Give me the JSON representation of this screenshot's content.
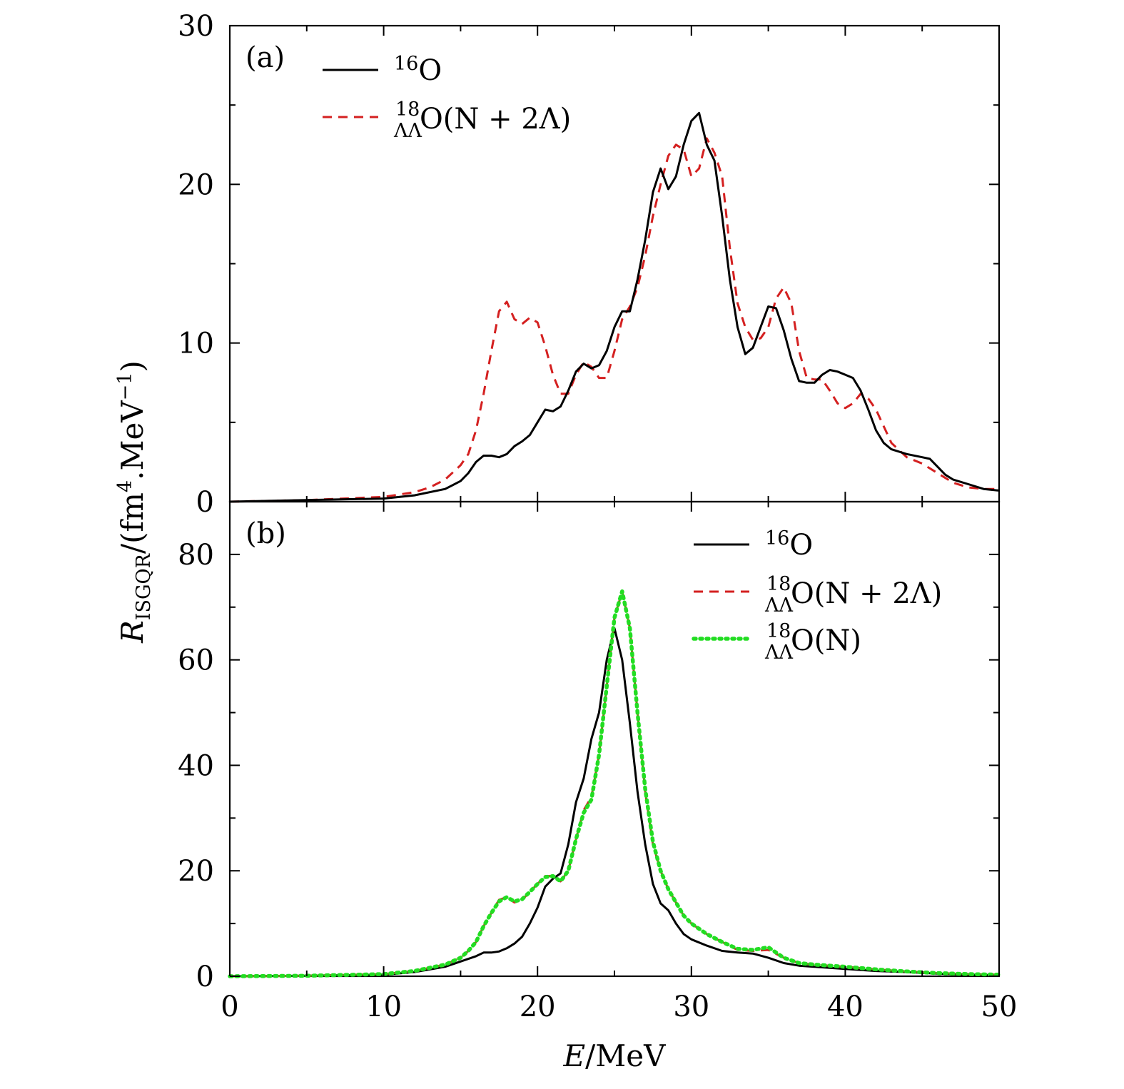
{
  "chart_data": {
    "type": "line",
    "xlabel": {
      "var": "E",
      "unit": "/MeV"
    },
    "ylabel": {
      "main": "R",
      "sub": "ISGQR",
      "unit": "/(fm",
      "sup": "4",
      "unit2": ".MeV",
      "sup2": "−1",
      "close": ")"
    },
    "xlim": [
      0,
      50
    ],
    "x_ticks": [
      "0",
      "10",
      "20",
      "30",
      "40",
      "50"
    ],
    "colors": {
      "o16": "#000000",
      "ll_n2l": "#d42020",
      "ll_n": "#22dd22"
    },
    "panels": [
      {
        "id": "a",
        "label": "(a)",
        "ylim": [
          0,
          30
        ],
        "y_ticks": [
          "0",
          "10",
          "20",
          "30"
        ],
        "legend": [
          {
            "key": "o16",
            "style": "solid",
            "pre_sup": "16",
            "base": "O",
            "suffix": ""
          },
          {
            "key": "ll_n2l",
            "style": "dashed",
            "sup": "18",
            "sub": "ΛΛ",
            "base": "O",
            "suffix": "(N + 2Λ)"
          }
        ],
        "series": [
          {
            "key": "o16",
            "name": "16O",
            "x": [
              0,
              5,
              10,
              12,
              14,
              15,
              15.5,
              16,
              16.5,
              17,
              17.5,
              18,
              18.5,
              19,
              19.5,
              20,
              20.5,
              21,
              21.5,
              22,
              22.5,
              23,
              23.5,
              24,
              24.5,
              25,
              25.5,
              26,
              26.5,
              27,
              27.5,
              28,
              28.5,
              29,
              29.5,
              30,
              30.5,
              31,
              31.5,
              32,
              32.5,
              33,
              33.5,
              34,
              34.5,
              35,
              35.5,
              36,
              36.5,
              37,
              37.5,
              38,
              38.5,
              39,
              39.5,
              40,
              40.5,
              41,
              41.5,
              42,
              42.5,
              43,
              44,
              45,
              45.5,
              46,
              46.5,
              47,
              48,
              49,
              50
            ],
            "y": [
              0,
              0.1,
              0.2,
              0.4,
              0.8,
              1.3,
              1.8,
              2.5,
              2.9,
              2.9,
              2.8,
              3.0,
              3.5,
              3.8,
              4.2,
              5.0,
              5.8,
              5.7,
              6.0,
              7.0,
              8.2,
              8.7,
              8.4,
              8.6,
              9.5,
              11.0,
              12.0,
              12.0,
              14.0,
              16.5,
              19.5,
              21.0,
              19.7,
              20.5,
              22.5,
              24.0,
              24.5,
              22.5,
              21.5,
              18.0,
              14.0,
              11.0,
              9.3,
              9.7,
              11.0,
              12.3,
              12.2,
              10.8,
              9.0,
              7.6,
              7.5,
              7.5,
              8.0,
              8.3,
              8.2,
              8.0,
              7.8,
              7.0,
              5.8,
              4.5,
              3.7,
              3.3,
              3.0,
              2.8,
              2.7,
              2.2,
              1.7,
              1.4,
              1.1,
              0.8,
              0.7
            ]
          },
          {
            "key": "ll_n2l",
            "name": "18ΛΛO(N+2Λ)",
            "x": [
              0,
              5,
              10,
              12,
              13,
              14,
              15,
              15.5,
              16,
              16.5,
              17,
              17.5,
              18,
              18.5,
              19,
              19.5,
              20,
              20.5,
              21,
              21.5,
              22,
              22.5,
              23,
              23.5,
              24,
              24.5,
              25,
              25.5,
              26,
              26.5,
              27,
              27.5,
              28,
              28.5,
              29,
              29.5,
              30,
              30.5,
              31,
              31.5,
              32,
              32.5,
              33,
              33.5,
              34,
              34.5,
              35,
              35.5,
              36,
              36.5,
              37,
              37.5,
              38,
              38.5,
              39,
              39.5,
              40,
              40.5,
              41,
              41.5,
              42,
              43,
              44,
              45,
              46,
              47,
              48,
              49,
              50
            ],
            "y": [
              0,
              0.1,
              0.3,
              0.6,
              0.9,
              1.4,
              2.3,
              3.0,
              4.5,
              6.8,
              9.5,
              12.0,
              12.6,
              11.5,
              11.2,
              11.6,
              11.3,
              9.8,
              8.0,
              6.8,
              6.8,
              8.0,
              8.8,
              8.5,
              7.8,
              7.8,
              9.5,
              11.5,
              12.3,
              13.5,
              15.5,
              18.0,
              20.0,
              21.8,
              22.5,
              22.2,
              20.5,
              21.0,
              22.9,
              22.0,
              20.5,
              16.0,
              12.5,
              11.0,
              10.2,
              10.3,
              11.0,
              12.8,
              13.5,
              12.5,
              9.5,
              7.8,
              7.7,
              7.7,
              7.0,
              6.2,
              5.9,
              6.2,
              6.8,
              6.5,
              5.8,
              3.7,
              2.8,
              2.4,
              1.8,
              1.2,
              0.9,
              0.8,
              0.8
            ]
          }
        ]
      },
      {
        "id": "b",
        "label": "(b)",
        "ylim": [
          0,
          90
        ],
        "y_ticks": [
          "0",
          "20",
          "40",
          "60",
          "80"
        ],
        "legend": [
          {
            "key": "o16",
            "style": "solid",
            "pre_sup": "16",
            "base": "O",
            "suffix": ""
          },
          {
            "key": "ll_n2l",
            "style": "dashed",
            "sup": "18",
            "sub": "ΛΛ",
            "base": "O",
            "suffix": "(N + 2Λ)"
          },
          {
            "key": "ll_n",
            "style": "dotted",
            "sup": "18",
            "sub": "ΛΛ",
            "base": "O",
            "suffix": "(N)"
          }
        ],
        "series": [
          {
            "key": "o16",
            "name": "16O",
            "x": [
              0,
              5,
              10,
              12,
              14,
              15,
              16,
              16.5,
              17,
              17.5,
              18,
              18.5,
              19,
              19.5,
              20,
              20.5,
              21,
              21.5,
              22,
              22.5,
              23,
              23.5,
              24,
              24.5,
              25,
              25.5,
              26,
              26.5,
              27,
              27.5,
              28,
              28.5,
              29,
              29.5,
              30,
              31,
              32,
              33,
              34,
              35,
              36,
              37,
              38,
              39,
              40,
              42,
              44,
              46,
              48,
              50
            ],
            "y": [
              0,
              0.1,
              0.3,
              0.8,
              1.8,
              2.8,
              3.8,
              4.5,
              4.5,
              4.7,
              5.3,
              6.2,
              7.5,
              10.0,
              13.0,
              17.0,
              18.5,
              19.5,
              25.0,
              33.0,
              37.5,
              45.0,
              50.0,
              60.0,
              66.0,
              60.0,
              48.0,
              35.0,
              25.0,
              17.5,
              13.8,
              12.5,
              10.0,
              8.0,
              7.0,
              5.8,
              4.8,
              4.5,
              4.3,
              3.5,
              2.5,
              2.0,
              1.8,
              1.6,
              1.4,
              1.0,
              0.8,
              0.5,
              0.3,
              0.2
            ]
          },
          {
            "key": "ll_n2l",
            "name": "18ΛΛO(N+2Λ)",
            "x": [
              0,
              5,
              10,
              12,
              14,
              15,
              15.5,
              16,
              16.5,
              17,
              17.5,
              18,
              18.5,
              19,
              19.5,
              20,
              20.5,
              21,
              21.5,
              22,
              22.5,
              23,
              23.5,
              24,
              24.5,
              25,
              25.5,
              26,
              26.5,
              27,
              27.5,
              28,
              28.5,
              29,
              29.5,
              30,
              31,
              32,
              33,
              34,
              35,
              36,
              37,
              38,
              39,
              40,
              42,
              44,
              46,
              48,
              50
            ],
            "y": [
              0,
              0.1,
              0.4,
              1.0,
              2.2,
              3.5,
              4.8,
              6.5,
              9.5,
              12.0,
              14.5,
              15.0,
              14.0,
              14.5,
              16.0,
              17.5,
              19.0,
              19.0,
              18.0,
              20.0,
              26.0,
              31.5,
              34.0,
              42.0,
              55.0,
              68.0,
              73.0,
              66.0,
              50.0,
              35.0,
              25.0,
              20.0,
              16.5,
              14.0,
              11.5,
              10.0,
              8.0,
              6.5,
              5.0,
              4.8,
              5.0,
              3.5,
              2.5,
              2.2,
              2.0,
              1.8,
              1.3,
              0.9,
              0.6,
              0.4,
              0.3
            ]
          },
          {
            "key": "ll_n",
            "name": "18ΛΛO(N)",
            "x": [
              0,
              5,
              10,
              12,
              14,
              15,
              15.5,
              16,
              16.5,
              17,
              17.5,
              18,
              18.5,
              19,
              19.5,
              20,
              20.5,
              21,
              21.5,
              22,
              22.5,
              23,
              23.5,
              24,
              24.5,
              25,
              25.5,
              26,
              26.5,
              27,
              27.5,
              28,
              28.5,
              29,
              29.5,
              30,
              31,
              32,
              33,
              34,
              35,
              36,
              37,
              38,
              39,
              40,
              42,
              44,
              46,
              48,
              50
            ],
            "y": [
              0,
              0.1,
              0.4,
              1.0,
              2.2,
              3.5,
              4.8,
              6.5,
              9.5,
              12.0,
              14.2,
              15.0,
              14.2,
              14.6,
              16.0,
              17.5,
              18.8,
              19.0,
              18.0,
              20.0,
              26.0,
              31.0,
              33.5,
              42.0,
              55.0,
              68.0,
              73.0,
              66.0,
              50.0,
              35.5,
              25.5,
              20.0,
              16.5,
              14.0,
              11.5,
              10.0,
              8.0,
              6.5,
              5.2,
              5.0,
              5.5,
              3.5,
              2.5,
              2.2,
              2.0,
              1.8,
              1.3,
              0.9,
              0.6,
              0.4,
              0.3
            ]
          }
        ]
      }
    ]
  }
}
